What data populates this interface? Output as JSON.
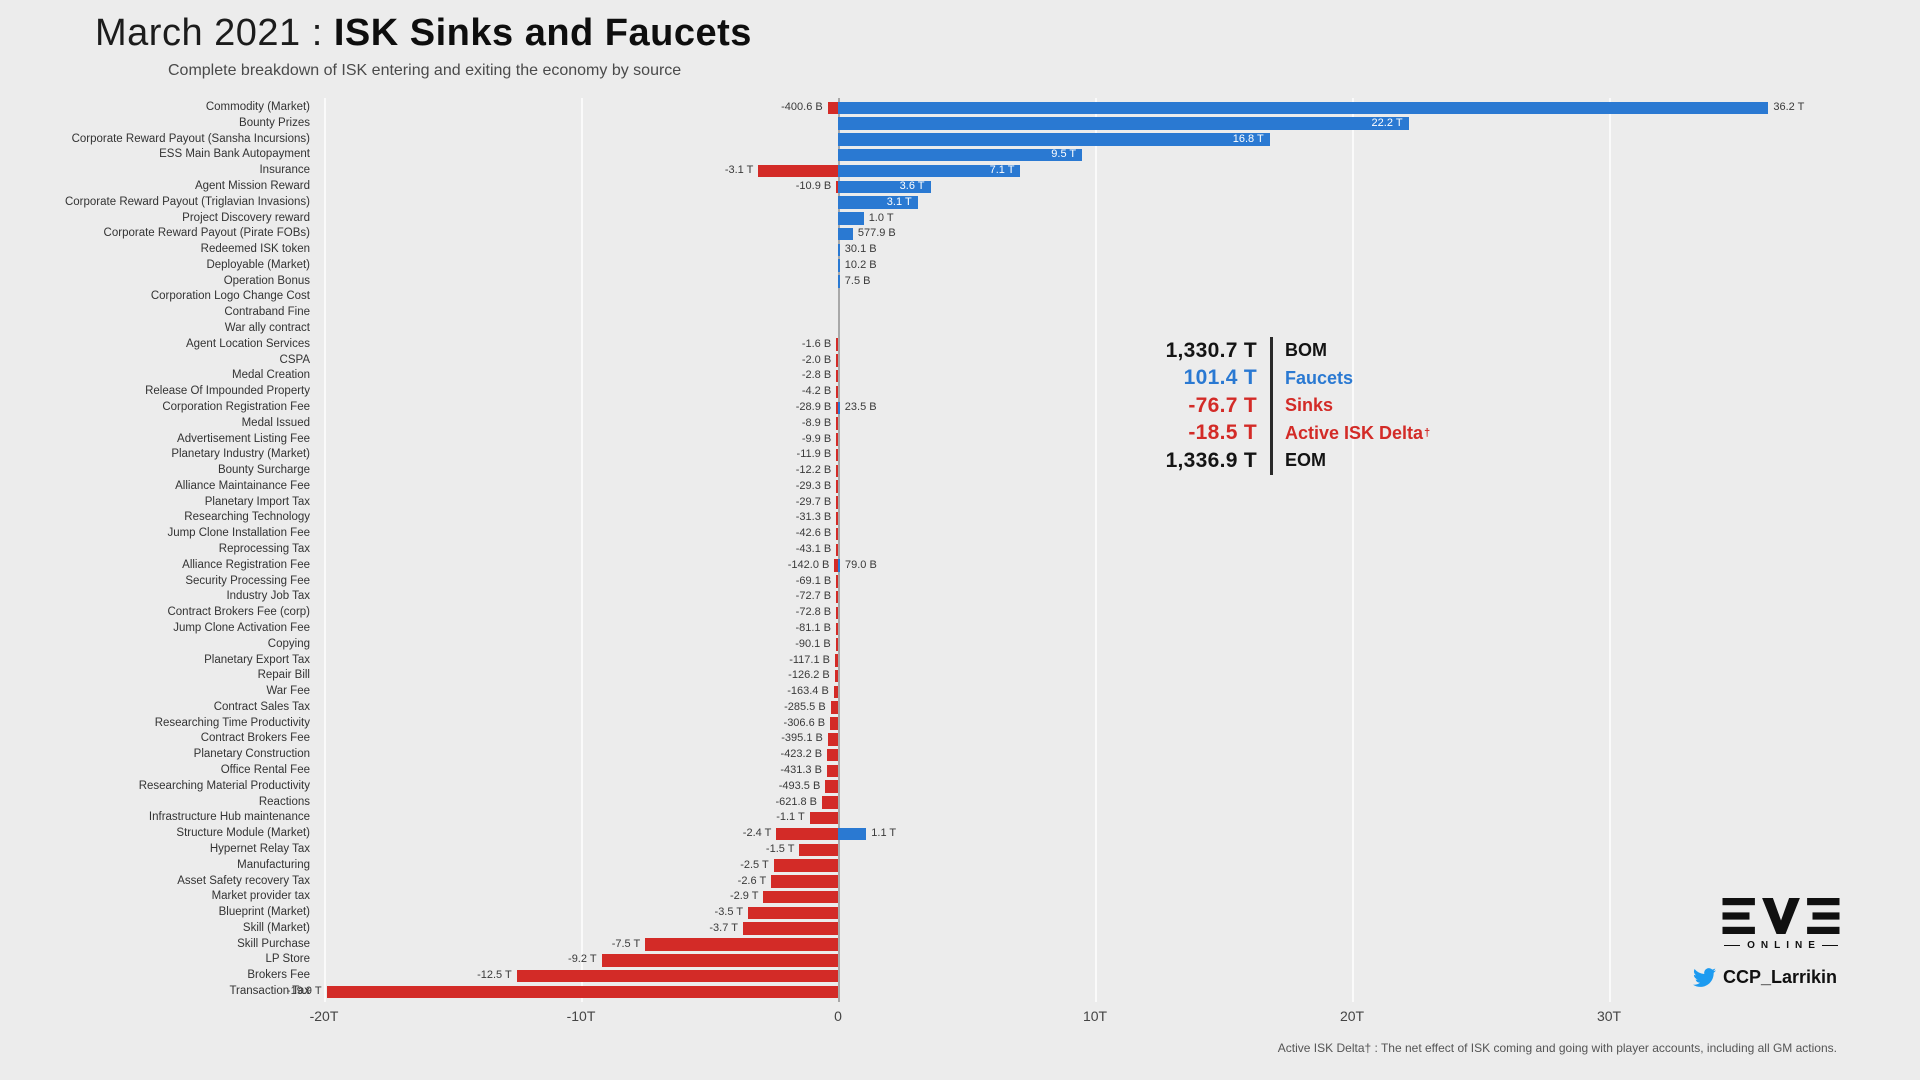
{
  "header": {
    "title_prefix": "March 2021 : ",
    "title_bold": "ISK Sinks and Faucets",
    "subtitle": "Complete breakdown of ISK entering and exiting the economy by source"
  },
  "colors": {
    "faucet_blue": "#2a79d2",
    "sink_red": "#d32b27",
    "background": "#ececec"
  },
  "summary": {
    "rows": [
      {
        "value": "1,330.7 T",
        "label": "BOM",
        "color": "dark"
      },
      {
        "value": "101.4 T",
        "label": "Faucets",
        "color": "blue"
      },
      {
        "value": "-76.7 T",
        "label": "Sinks",
        "color": "red"
      },
      {
        "value": "-18.5 T",
        "label": "Active ISK Delta",
        "label_sup": "†",
        "color": "red"
      },
      {
        "value": "1,336.9 T",
        "label": "EOM",
        "color": "dark"
      }
    ]
  },
  "branding": {
    "logo_text": "EVE",
    "logo_subtext": "ONLINE",
    "twitter_handle": "CCP_Larrikin"
  },
  "footnote": "Active ISK Delta† : The net effect of ISK coming and going with player accounts, including all GM actions.",
  "chart_data": {
    "type": "bar",
    "orientation": "horizontal",
    "unit": "T (trillions of ISK)",
    "title": "March 2021 : ISK Sinks and Faucets",
    "legend": {
      "faucet_color": "#2a79d2",
      "sink_color": "#d32b27"
    },
    "x_ticks": [
      {
        "value": -20,
        "label": "-20T"
      },
      {
        "value": -10,
        "label": "-10T"
      },
      {
        "value": 0,
        "label": "0"
      },
      {
        "value": 10,
        "label": "10T"
      },
      {
        "value": 20,
        "label": "20T"
      },
      {
        "value": 30,
        "label": "30T"
      }
    ],
    "xlim": [
      -21,
      42
    ],
    "rows": [
      {
        "category": "Commodity (Market)",
        "sink": -0.4006,
        "sink_label": "-400.6 B",
        "faucet": 36.2,
        "faucet_label": "36.2 T",
        "faucet_label_outside": true
      },
      {
        "category": "Bounty Prizes",
        "faucet": 22.2,
        "faucet_label": "22.2 T"
      },
      {
        "category": "Corporate Reward Payout (Sansha Incursions)",
        "faucet": 16.8,
        "faucet_label": "16.8 T"
      },
      {
        "category": "ESS Main Bank Autopayment",
        "faucet": 9.5,
        "faucet_label": "9.5 T"
      },
      {
        "category": "Insurance",
        "sink": -3.1,
        "sink_label": "-3.1 T",
        "faucet": 7.1,
        "faucet_label": "7.1 T"
      },
      {
        "category": "Agent Mission Reward",
        "sink": -0.0109,
        "sink_label": "-10.9 B",
        "faucet": 3.6,
        "faucet_label": "3.6 T"
      },
      {
        "category": "Corporate Reward Payout (Triglavian Invasions)",
        "faucet": 3.1,
        "faucet_label": "3.1 T"
      },
      {
        "category": "Project Discovery reward",
        "faucet": 1.0,
        "faucet_label": "1.0 T"
      },
      {
        "category": "Corporate Reward Payout (Pirate FOBs)",
        "faucet": 0.5779,
        "faucet_label": "577.9 B"
      },
      {
        "category": "Redeemed ISK token",
        "faucet": 0.0301,
        "faucet_label": "30.1 B"
      },
      {
        "category": "Deployable (Market)",
        "faucet": 0.0102,
        "faucet_label": "10.2 B"
      },
      {
        "category": "Operation Bonus",
        "faucet": 0.0075,
        "faucet_label": "7.5 B"
      },
      {
        "category": "Corporation Logo Change Cost"
      },
      {
        "category": "Contraband Fine"
      },
      {
        "category": "War ally contract"
      },
      {
        "category": "Agent Location Services",
        "sink": -0.0016,
        "sink_label": "-1.6 B"
      },
      {
        "category": "CSPA",
        "sink": -0.002,
        "sink_label": "-2.0 B"
      },
      {
        "category": "Medal Creation",
        "sink": -0.0028,
        "sink_label": "-2.8 B"
      },
      {
        "category": "Release Of Impounded Property",
        "sink": -0.0042,
        "sink_label": "-4.2 B"
      },
      {
        "category": "Corporation Registration Fee",
        "sink": -0.0289,
        "sink_label": "-28.9 B",
        "faucet": 0.0235,
        "faucet_label": "23.5 B"
      },
      {
        "category": "Medal Issued",
        "sink": -0.0089,
        "sink_label": "-8.9 B"
      },
      {
        "category": "Advertisement Listing Fee",
        "sink": -0.0099,
        "sink_label": "-9.9 B"
      },
      {
        "category": "Planetary Industry (Market)",
        "sink": -0.0119,
        "sink_label": "-11.9 B"
      },
      {
        "category": "Bounty Surcharge",
        "sink": -0.0122,
        "sink_label": "-12.2 B"
      },
      {
        "category": "Alliance Maintainance Fee",
        "sink": -0.0293,
        "sink_label": "-29.3 B"
      },
      {
        "category": "Planetary Import Tax",
        "sink": -0.0297,
        "sink_label": "-29.7 B"
      },
      {
        "category": "Researching Technology",
        "sink": -0.0313,
        "sink_label": "-31.3 B"
      },
      {
        "category": "Jump Clone Installation Fee",
        "sink": -0.0426,
        "sink_label": "-42.6 B"
      },
      {
        "category": "Reprocessing Tax",
        "sink": -0.0431,
        "sink_label": "-43.1 B"
      },
      {
        "category": "Alliance Registration Fee",
        "sink": -0.142,
        "sink_label": "-142.0 B",
        "faucet": 0.079,
        "faucet_label": "79.0 B"
      },
      {
        "category": "Security Processing Fee",
        "sink": -0.0691,
        "sink_label": "-69.1 B"
      },
      {
        "category": "Industry Job Tax",
        "sink": -0.0727,
        "sink_label": "-72.7 B"
      },
      {
        "category": "Contract Brokers Fee (corp)",
        "sink": -0.0728,
        "sink_label": "-72.8 B"
      },
      {
        "category": "Jump Clone Activation Fee",
        "sink": -0.0811,
        "sink_label": "-81.1 B"
      },
      {
        "category": "Copying",
        "sink": -0.0901,
        "sink_label": "-90.1 B"
      },
      {
        "category": "Planetary Export Tax",
        "sink": -0.1171,
        "sink_label": "-117.1 B"
      },
      {
        "category": "Repair Bill",
        "sink": -0.1262,
        "sink_label": "-126.2 B"
      },
      {
        "category": "War Fee",
        "sink": -0.1634,
        "sink_label": "-163.4 B"
      },
      {
        "category": "Contract Sales Tax",
        "sink": -0.2855,
        "sink_label": "-285.5 B"
      },
      {
        "category": "Researching Time Productivity",
        "sink": -0.3066,
        "sink_label": "-306.6 B"
      },
      {
        "category": "Contract Brokers Fee",
        "sink": -0.3951,
        "sink_label": "-395.1 B"
      },
      {
        "category": "Planetary Construction",
        "sink": -0.4232,
        "sink_label": "-423.2 B"
      },
      {
        "category": "Office Rental Fee",
        "sink": -0.4313,
        "sink_label": "-431.3 B"
      },
      {
        "category": "Researching Material Productivity",
        "sink": -0.4935,
        "sink_label": "-493.5 B"
      },
      {
        "category": "Reactions",
        "sink": -0.6218,
        "sink_label": "-621.8 B"
      },
      {
        "category": "Infrastructure Hub maintenance",
        "sink": -1.1,
        "sink_label": "-1.1 T"
      },
      {
        "category": "Structure Module (Market)",
        "sink": -2.4,
        "sink_label": "-2.4 T",
        "faucet": 1.1,
        "faucet_label": "1.1 T"
      },
      {
        "category": "Hypernet Relay Tax",
        "sink": -1.5,
        "sink_label": "-1.5 T"
      },
      {
        "category": "Manufacturing",
        "sink": -2.5,
        "sink_label": "-2.5 T"
      },
      {
        "category": "Asset Safety recovery Tax",
        "sink": -2.6,
        "sink_label": "-2.6 T"
      },
      {
        "category": "Market provider tax",
        "sink": -2.9,
        "sink_label": "-2.9 T"
      },
      {
        "category": "Blueprint (Market)",
        "sink": -3.5,
        "sink_label": "-3.5 T"
      },
      {
        "category": "Skill (Market)",
        "sink": -3.7,
        "sink_label": "-3.7 T"
      },
      {
        "category": "Skill Purchase",
        "sink": -7.5,
        "sink_label": "-7.5 T"
      },
      {
        "category": "LP Store",
        "sink": -9.2,
        "sink_label": "-9.2 T"
      },
      {
        "category": "Brokers Fee",
        "sink": -12.5,
        "sink_label": "-12.5 T"
      },
      {
        "category": "Transaction Tax",
        "sink": -19.9,
        "sink_label": "-19.9 T"
      }
    ]
  }
}
